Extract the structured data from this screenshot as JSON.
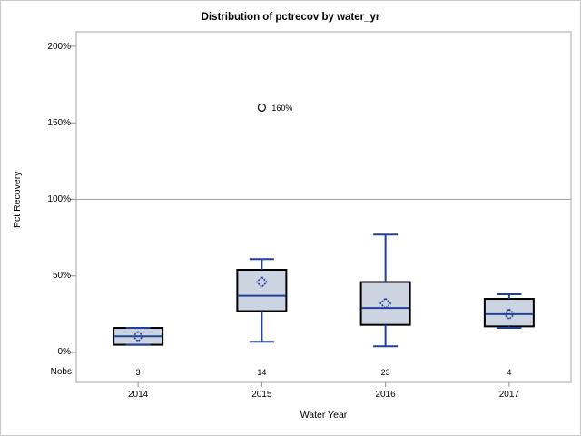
{
  "chart_data": {
    "type": "boxplot",
    "title": "Distribution of pctrecov by water_yr",
    "xlabel": "Water Year",
    "ylabel": "Pct Recovery",
    "categories": [
      "2014",
      "2015",
      "2016",
      "2017"
    ],
    "nobs_label": "Nobs",
    "nobs": [
      "3",
      "14",
      "23",
      "4"
    ],
    "ylim": [
      0,
      210
    ],
    "ytick_values": [
      200,
      150,
      100,
      50,
      0
    ],
    "ytick_labels": [
      "200%",
      "150%",
      "100%",
      "50%",
      "0%"
    ],
    "refline": 100,
    "grid": false,
    "legend": null,
    "series": [
      {
        "category": "2014",
        "n": 3,
        "whisker_low": 5,
        "q1": 5,
        "median": 10.5,
        "q3": 16,
        "whisker_high": 16,
        "mean": 10.5,
        "outliers": []
      },
      {
        "category": "2015",
        "n": 14,
        "whisker_low": 7,
        "q1": 27,
        "median": 37,
        "q3": 54,
        "whisker_high": 61,
        "mean": 46,
        "outliers": [
          {
            "value": 160,
            "label": "160%"
          }
        ]
      },
      {
        "category": "2016",
        "n": 23,
        "whisker_low": 4,
        "q1": 18,
        "median": 29,
        "q3": 46,
        "whisker_high": 77,
        "mean": 32,
        "outliers": []
      },
      {
        "category": "2017",
        "n": 4,
        "whisker_low": 16,
        "q1": 17,
        "median": 25,
        "q3": 35,
        "whisker_high": 38,
        "mean": 25,
        "outliers": []
      }
    ],
    "colors": {
      "box_fill": "#ccd4e2",
      "box_border": "#000000",
      "line": "#20409a",
      "mean_marker": "#20409a",
      "frame": "#a4a4a4",
      "refline": "#a4a4a4",
      "tick": "#8f8f8f",
      "outlier_marker": "#1a1a1a",
      "text": "#000000"
    }
  }
}
